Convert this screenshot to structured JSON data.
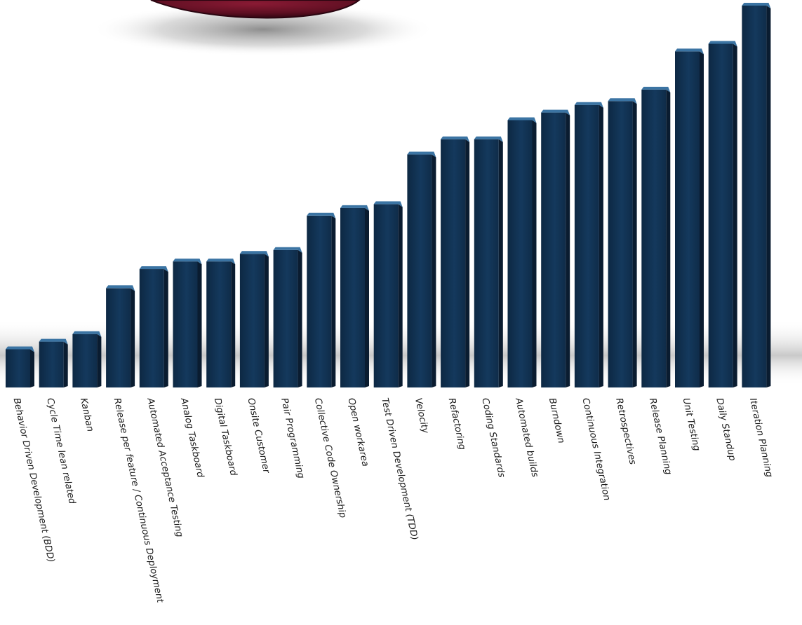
{
  "chart_data": {
    "type": "bar",
    "title": "",
    "xlabel": "",
    "ylabel": "",
    "ylim": [
      0,
      100
    ],
    "grid": false,
    "legend": "none",
    "categories": [
      "Behavior Driven Development (BDD)",
      "Cycle Time lean related",
      "Kanban",
      "Release per feature / Continuous Deployment",
      "Automated Acceptance Testing",
      "Analog Taskboard",
      "Digital Taskboard",
      "Onsite Customer",
      "Pair Programming",
      "Collective Code Ownership",
      "Open workarea",
      "Test Driven Development (TDD)",
      "Velocity",
      "Refactoring",
      "Coding Standards",
      "Automated builds",
      "Burndown",
      "Continuous Integration",
      "Retrospectives",
      "Release Planning",
      "Unit Testing",
      "Daily Standup",
      "Iteration Planning"
    ],
    "values": [
      10,
      12,
      14,
      26,
      31,
      33,
      33,
      35,
      36,
      45,
      47,
      48,
      61,
      65,
      65,
      70,
      72,
      74,
      75,
      78,
      88,
      90,
      100
    ]
  },
  "colors": {
    "bar_front": "#103050",
    "bar_top": "#3b74a3",
    "bar_side": "#0a1c30",
    "sphere": "#6e1228",
    "sphere_shadow": "#9a9a9a",
    "floor_shadow": "#a8a8a8",
    "label_text": "#1a1a1a"
  }
}
